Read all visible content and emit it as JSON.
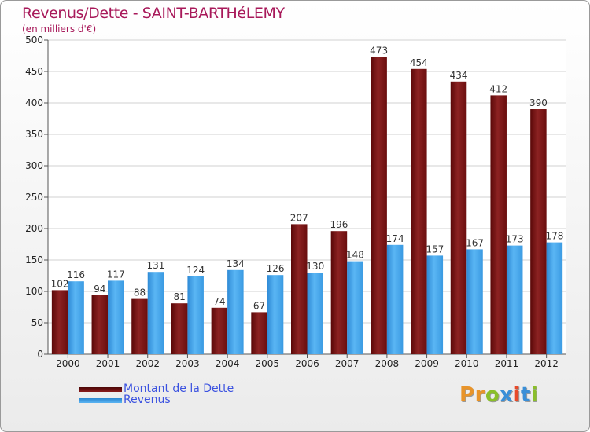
{
  "title": "Revenus/Dette - SAINT-BARTHéLEMY",
  "subtitle": "(en milliers d'€)",
  "logo_text": "Proxiti",
  "colors": {
    "title": "#a8195a",
    "legend_text": "#3b52e0",
    "dette": "#7a1010",
    "revenus": "#3d9fe6",
    "logo": [
      "#e8942a",
      "#e8942a",
      "#8bbf2a",
      "#3a8fd8",
      "#e84a2a",
      "#3a8fd8",
      "#8bbf2a"
    ]
  },
  "chart_data": {
    "type": "bar",
    "title": "Revenus/Dette - SAINT-BARTHéLEMY",
    "subtitle": "(en milliers d'€)",
    "categories": [
      "2000",
      "2001",
      "2002",
      "2003",
      "2004",
      "2005",
      "2006",
      "2007",
      "2008",
      "2009",
      "2010",
      "2011",
      "2012"
    ],
    "series": [
      {
        "name": "Montant de la Dette",
        "values": [
          102,
          94,
          88,
          81,
          74,
          67,
          207,
          196,
          473,
          454,
          434,
          412,
          390
        ]
      },
      {
        "name": "Revenus",
        "values": [
          116,
          117,
          131,
          124,
          134,
          126,
          130,
          148,
          174,
          157,
          167,
          173,
          178
        ]
      }
    ],
    "ylim": [
      0,
      500
    ],
    "yticks": [
      0,
      50,
      100,
      150,
      200,
      250,
      300,
      350,
      400,
      450,
      500
    ],
    "grid": true,
    "legend_position": "bottom-left"
  }
}
